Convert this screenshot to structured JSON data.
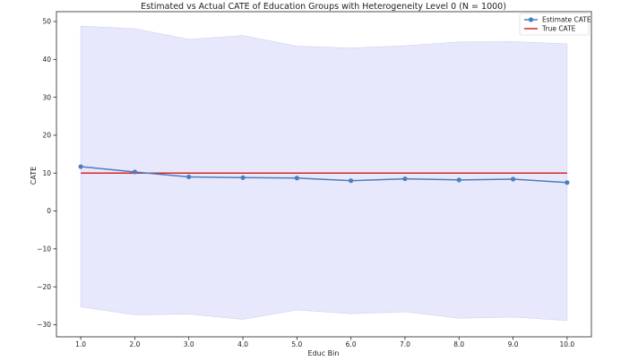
{
  "chart_data": {
    "type": "line",
    "title": "Estimated vs Actual CATE of Education Groups with Heterogeneity Level 0 (N = 1000)",
    "xlabel": "Educ Bin",
    "ylabel": "CATE",
    "x": [
      1.0,
      2.0,
      3.0,
      4.0,
      5.0,
      6.0,
      7.0,
      8.0,
      9.0,
      10.0
    ],
    "x_tick_labels": [
      "1.0",
      "2.0",
      "3.0",
      "4.0",
      "5.0",
      "6.0",
      "7.0",
      "8.0",
      "9.0",
      "10.0"
    ],
    "y_ticks": [
      -30,
      -20,
      -10,
      0,
      10,
      20,
      30,
      40,
      50
    ],
    "y_tick_labels": [
      "−30",
      "−20",
      "−10",
      "0",
      "10",
      "20",
      "30",
      "40",
      "50"
    ],
    "xlim": [
      0.55,
      10.45
    ],
    "ylim": [
      -33.2,
      52.6
    ],
    "grid": false,
    "legend_position": "top-right",
    "series": [
      {
        "name": "Estimate CATE",
        "color": "#4a7ebb",
        "marker": "circle",
        "values": [
          11.7,
          10.3,
          9.0,
          8.8,
          8.7,
          8.0,
          8.5,
          8.2,
          8.4,
          7.5
        ]
      },
      {
        "name": "True CATE",
        "color": "#d62728",
        "marker": "none",
        "values": [
          10,
          10,
          10,
          10,
          10,
          10,
          10,
          10,
          10,
          10
        ]
      }
    ],
    "confidence_band": {
      "series": "Estimate CATE",
      "color": "#e2e2fb",
      "lower": [
        -25.3,
        -27.4,
        -27.2,
        -28.6,
        -26.1,
        -27.1,
        -26.6,
        -28.3,
        -28.0,
        -28.9
      ],
      "upper": [
        48.8,
        48.1,
        45.3,
        46.3,
        43.5,
        43.0,
        43.6,
        44.6,
        44.7,
        44.1
      ]
    }
  }
}
